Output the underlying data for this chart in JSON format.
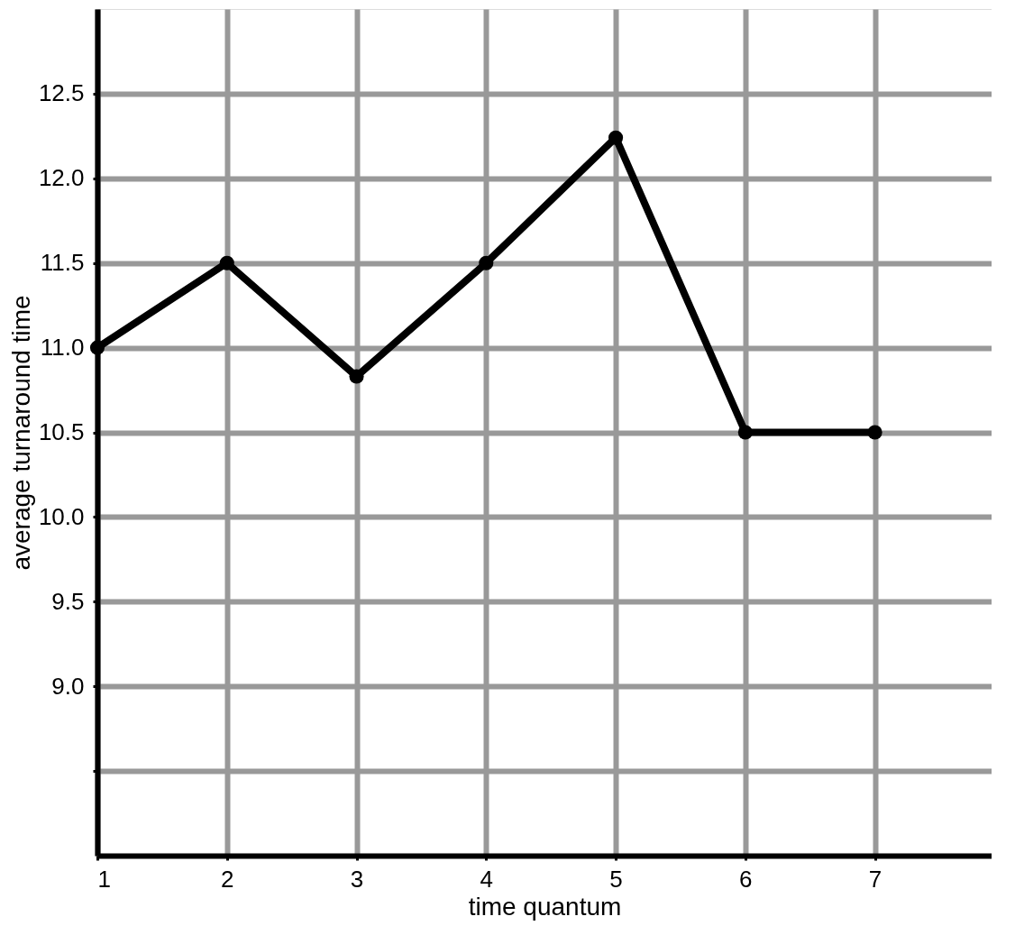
{
  "chart_data": {
    "type": "line",
    "xlabel": "time quantum",
    "ylabel": "average turnaround time",
    "x": [
      1,
      2,
      3,
      4,
      5,
      6,
      7
    ],
    "series": [
      {
        "color": "#000000",
        "values": [
          11.0,
          11.5,
          10.83,
          11.5,
          12.24,
          10.5,
          10.5
        ]
      }
    ],
    "xlim": [
      1,
      7.9
    ],
    "xticks": [
      1,
      2,
      3,
      4,
      5,
      6,
      7
    ],
    "ylim": [
      8.0,
      13.0
    ],
    "yticks": [
      {
        "value": 8.5,
        "label": null
      },
      {
        "value": 9,
        "label": "9.0"
      },
      9.5,
      {
        "value": 10,
        "label": "10.0"
      },
      10.5,
      {
        "value": 11,
        "label": "11.0"
      },
      11.5,
      {
        "value": 12,
        "label": "12.0"
      },
      12.5
    ],
    "grid": true,
    "marker": "circle",
    "line_style": "solid"
  }
}
